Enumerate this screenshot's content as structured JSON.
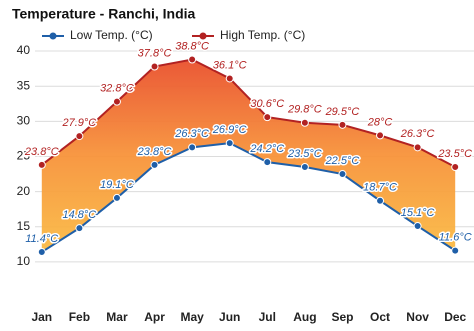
{
  "chart_data": {
    "type": "line",
    "title": "Temperature - Ranchi, India",
    "categories": [
      "Jan",
      "Feb",
      "Mar",
      "Apr",
      "May",
      "Jun",
      "Jul",
      "Aug",
      "Sep",
      "Oct",
      "Nov",
      "Dec"
    ],
    "series": [
      {
        "name": "Low Temp. (°C)",
        "color": "#1f5fa8",
        "values": [
          11.4,
          14.8,
          19.1,
          23.8,
          26.3,
          26.9,
          24.2,
          23.5,
          22.5,
          18.7,
          15.1,
          11.6
        ],
        "value_labels": [
          "11.4°C",
          "14.8°C",
          "19.1°C",
          "23.8°C",
          "26.3°C",
          "26.9°C",
          "24.2°C",
          "23.5°C",
          "22.5°C",
          "18.7°C",
          "15.1°C",
          "11.6°C"
        ]
      },
      {
        "name": "High Temp. (°C)",
        "color": "#b22222",
        "values": [
          23.8,
          27.9,
          32.8,
          37.8,
          38.8,
          36.1,
          30.6,
          29.8,
          29.5,
          28,
          26.3,
          23.5
        ],
        "value_labels": [
          "23.8°C",
          "27.9°C",
          "32.8°C",
          "37.8°C",
          "38.8°C",
          "36.1°C",
          "30.6°C",
          "29.8°C",
          "29.5°C",
          "28°C",
          "26.3°C",
          "23.5°C"
        ]
      }
    ],
    "ylim": [
      6,
      42
    ],
    "yticks": [
      10,
      15,
      20,
      25,
      30,
      35,
      40
    ],
    "grid": true
  }
}
